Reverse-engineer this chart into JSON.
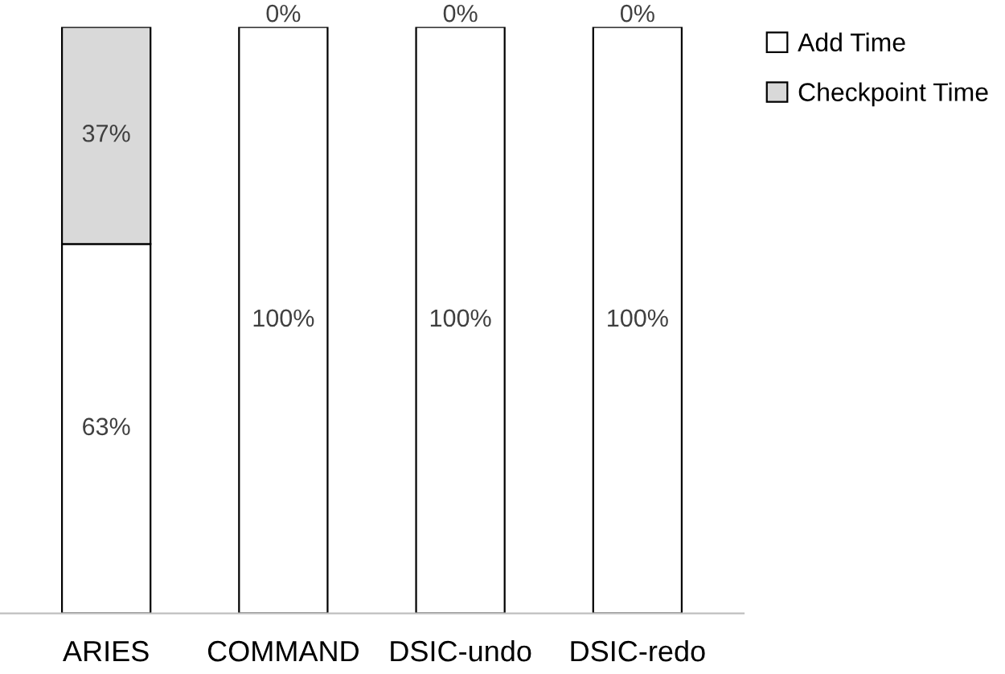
{
  "chart_data": {
    "type": "bar",
    "stacked": true,
    "categories": [
      "ARIES",
      "COMMAND",
      "DSIC-undo",
      "DSIC-redo"
    ],
    "series": [
      {
        "name": "Add Time",
        "color": "#ffffff",
        "values": [
          63,
          100,
          100,
          100
        ],
        "value_labels": [
          "63%",
          "100%",
          "100%",
          "100%"
        ]
      },
      {
        "name": "Checkpoint Time",
        "color": "#d9d9d9",
        "values": [
          37,
          0,
          0,
          0
        ],
        "value_labels": [
          "37%",
          "0%",
          "0%",
          "0%"
        ]
      }
    ],
    "legend": "top right",
    "grid": false
  }
}
